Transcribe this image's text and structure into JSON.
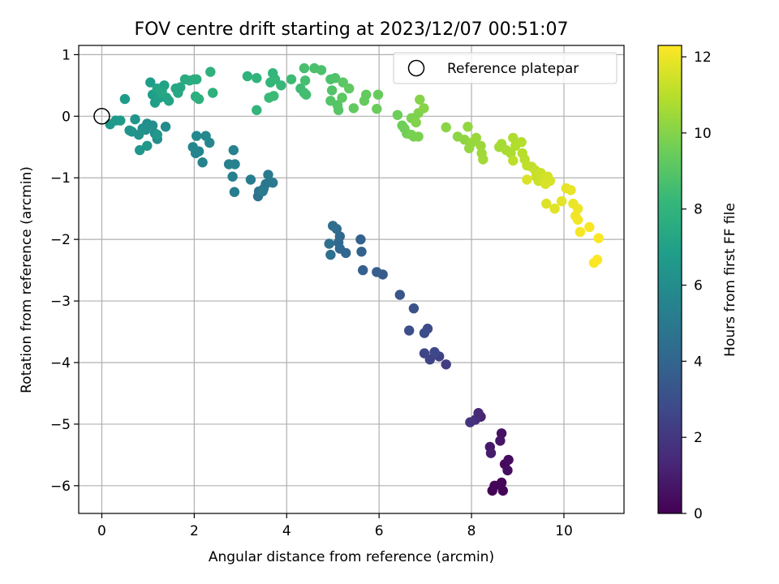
{
  "chart_data": {
    "type": "scatter",
    "title": "FOV centre drift starting at 2023/12/07 00:51:07",
    "xlabel": "Angular distance from reference (arcmin)",
    "ylabel": "Rotation from reference (arcmin)",
    "xlim": [
      -0.5,
      11.3
    ],
    "ylim": [
      -6.45,
      1.15
    ],
    "xticks": [
      0,
      2,
      4,
      6,
      8,
      10
    ],
    "yticks": [
      1,
      0,
      -1,
      -2,
      -3,
      -4,
      -5,
      -6
    ],
    "grid": true,
    "legend": {
      "placement": "top-right",
      "entries": [
        "Reference platepar"
      ]
    },
    "reference_point": {
      "x": 0,
      "y": 0
    },
    "colorbar": {
      "label": "Hours from first FF file",
      "range": [
        0,
        12.3
      ],
      "ticks": [
        0,
        2,
        4,
        6,
        8,
        10,
        12
      ],
      "colormap": "viridis",
      "stops": [
        "#440154",
        "#482878",
        "#3e4989",
        "#31688e",
        "#26828e",
        "#1f9e89",
        "#35b779",
        "#6ece58",
        "#b5de2b",
        "#fde725"
      ]
    },
    "points": [
      [
        8.45,
        -6.08,
        0.05
      ],
      [
        8.5,
        -6.0,
        0.1
      ],
      [
        8.68,
        -6.08,
        0.15
      ],
      [
        8.65,
        -5.95,
        0.2
      ],
      [
        8.72,
        -5.65,
        0.3
      ],
      [
        8.8,
        -5.58,
        0.4
      ],
      [
        8.78,
        -5.75,
        0.5
      ],
      [
        8.65,
        -5.15,
        0.6
      ],
      [
        8.62,
        -5.27,
        0.7
      ],
      [
        8.4,
        -5.37,
        0.8
      ],
      [
        8.42,
        -5.47,
        0.9
      ],
      [
        8.2,
        -4.88,
        1.2
      ],
      [
        8.15,
        -4.82,
        1.4
      ],
      [
        8.08,
        -4.93,
        1.6
      ],
      [
        7.97,
        -4.97,
        1.8
      ],
      [
        7.45,
        -4.03,
        2.2
      ],
      [
        7.3,
        -3.9,
        2.4
      ],
      [
        7.1,
        -3.95,
        2.5
      ],
      [
        6.98,
        -3.85,
        2.6
      ],
      [
        7.2,
        -3.83,
        2.7
      ],
      [
        7.05,
        -3.45,
        2.8
      ],
      [
        6.98,
        -3.52,
        2.9
      ],
      [
        6.65,
        -3.48,
        3.0
      ],
      [
        6.75,
        -3.12,
        3.1
      ],
      [
        6.45,
        -2.9,
        3.3
      ],
      [
        6.08,
        -2.57,
        3.5
      ],
      [
        5.95,
        -2.53,
        3.6
      ],
      [
        5.65,
        -2.5,
        3.7
      ],
      [
        5.6,
        -2.0,
        3.8
      ],
      [
        5.62,
        -2.2,
        3.9
      ],
      [
        5.28,
        -2.22,
        4.0
      ],
      [
        5.15,
        -2.15,
        4.1
      ],
      [
        5.12,
        -2.05,
        4.15
      ],
      [
        5.15,
        -1.95,
        4.2
      ],
      [
        5.08,
        -1.83,
        4.3
      ],
      [
        5.0,
        -1.78,
        4.4
      ],
      [
        4.92,
        -2.07,
        4.5
      ],
      [
        4.95,
        -2.25,
        4.55
      ],
      [
        3.38,
        -1.3,
        4.6
      ],
      [
        3.4,
        -1.22,
        4.7
      ],
      [
        3.5,
        -1.18,
        4.8
      ],
      [
        3.55,
        -1.1,
        4.9
      ],
      [
        3.7,
        -1.08,
        5.0
      ],
      [
        3.6,
        -0.95,
        5.05
      ],
      [
        3.48,
        -1.22,
        5.1
      ],
      [
        3.22,
        -1.03,
        5.15
      ],
      [
        2.87,
        -1.23,
        5.2
      ],
      [
        2.83,
        -0.98,
        5.3
      ],
      [
        2.75,
        -0.78,
        5.35
      ],
      [
        2.88,
        -0.78,
        5.4
      ],
      [
        2.85,
        -0.55,
        5.45
      ],
      [
        2.18,
        -0.75,
        5.5
      ],
      [
        2.03,
        -0.6,
        5.55
      ],
      [
        2.1,
        -0.57,
        5.6
      ],
      [
        1.97,
        -0.5,
        5.65
      ],
      [
        2.33,
        -0.43,
        5.7
      ],
      [
        2.25,
        -0.32,
        5.75
      ],
      [
        2.05,
        -0.32,
        5.8
      ],
      [
        1.38,
        -0.17,
        5.9
      ],
      [
        1.2,
        -0.37,
        5.95
      ],
      [
        1.15,
        -0.28,
        6.0
      ],
      [
        1.1,
        -0.15,
        6.05
      ],
      [
        0.98,
        -0.12,
        6.1
      ],
      [
        0.95,
        -0.22,
        6.15
      ],
      [
        0.88,
        -0.2,
        6.2
      ],
      [
        0.8,
        -0.3,
        6.25
      ],
      [
        0.65,
        -0.25,
        6.3
      ],
      [
        0.6,
        -0.23,
        6.35
      ],
      [
        0.72,
        -0.05,
        6.4
      ],
      [
        0.82,
        -0.55,
        6.45
      ],
      [
        0.98,
        -0.48,
        6.5
      ],
      [
        1.2,
        -0.3,
        6.55
      ],
      [
        0.18,
        -0.13,
        6.6
      ],
      [
        0.3,
        -0.07,
        6.65
      ],
      [
        0.4,
        -0.07,
        6.7
      ],
      [
        0.5,
        0.28,
        6.75
      ],
      [
        1.05,
        0.55,
        6.8
      ],
      [
        1.1,
        0.35,
        6.85
      ],
      [
        1.15,
        0.22,
        6.9
      ],
      [
        1.25,
        0.3,
        6.95
      ],
      [
        1.3,
        0.42,
        7.0
      ],
      [
        1.35,
        0.5,
        7.05
      ],
      [
        1.4,
        0.3,
        7.1
      ],
      [
        1.45,
        0.25,
        7.15
      ],
      [
        1.2,
        0.45,
        7.2
      ],
      [
        1.3,
        0.38,
        7.25
      ],
      [
        1.6,
        0.45,
        7.3
      ],
      [
        1.65,
        0.38,
        7.35
      ],
      [
        1.7,
        0.47,
        7.4
      ],
      [
        1.8,
        0.6,
        7.5
      ],
      [
        1.9,
        0.58,
        7.55
      ],
      [
        2.0,
        0.6,
        7.6
      ],
      [
        2.05,
        0.6,
        7.65
      ],
      [
        2.03,
        0.32,
        7.7
      ],
      [
        2.1,
        0.28,
        7.75
      ],
      [
        2.35,
        0.72,
        7.8
      ],
      [
        2.4,
        0.38,
        7.85
      ],
      [
        3.15,
        0.65,
        7.9
      ],
      [
        3.35,
        0.62,
        8.0
      ],
      [
        3.35,
        0.1,
        8.05
      ],
      [
        3.65,
        0.55,
        8.1
      ],
      [
        3.7,
        0.7,
        8.15
      ],
      [
        3.75,
        0.6,
        8.2
      ],
      [
        3.88,
        0.5,
        8.25
      ],
      [
        3.62,
        0.3,
        8.3
      ],
      [
        3.72,
        0.33,
        8.35
      ],
      [
        4.1,
        0.6,
        8.4
      ],
      [
        4.3,
        0.45,
        8.45
      ],
      [
        4.38,
        0.38,
        8.5
      ],
      [
        4.42,
        0.35,
        8.55
      ],
      [
        4.4,
        0.58,
        8.6
      ],
      [
        4.38,
        0.78,
        8.65
      ],
      [
        4.6,
        0.78,
        8.7
      ],
      [
        4.75,
        0.75,
        8.75
      ],
      [
        4.95,
        0.6,
        8.8
      ],
      [
        5.05,
        0.62,
        8.85
      ],
      [
        4.98,
        0.42,
        8.9
      ],
      [
        4.95,
        0.25,
        8.95
      ],
      [
        5.1,
        0.18,
        9.0
      ],
      [
        5.12,
        0.1,
        9.05
      ],
      [
        5.22,
        0.55,
        9.1
      ],
      [
        5.2,
        0.3,
        9.15
      ],
      [
        5.35,
        0.45,
        9.2
      ],
      [
        5.45,
        0.13,
        9.25
      ],
      [
        5.72,
        0.35,
        9.3
      ],
      [
        5.68,
        0.25,
        9.35
      ],
      [
        5.98,
        0.35,
        9.4
      ],
      [
        5.95,
        0.12,
        9.45
      ],
      [
        6.4,
        0.02,
        9.5
      ],
      [
        6.5,
        -0.15,
        9.55
      ],
      [
        6.55,
        -0.2,
        9.6
      ],
      [
        6.6,
        -0.28,
        9.65
      ],
      [
        6.7,
        -0.3,
        9.7
      ],
      [
        6.75,
        -0.33,
        9.75
      ],
      [
        6.85,
        -0.33,
        9.8
      ],
      [
        6.7,
        -0.03,
        9.85
      ],
      [
        6.85,
        0.05,
        9.9
      ],
      [
        6.8,
        -0.1,
        9.95
      ],
      [
        6.88,
        0.27,
        10.0
      ],
      [
        6.97,
        0.13,
        10.05
      ],
      [
        7.45,
        -0.18,
        10.1
      ],
      [
        7.7,
        -0.33,
        10.15
      ],
      [
        7.85,
        -0.38,
        10.2
      ],
      [
        7.92,
        -0.17,
        10.25
      ],
      [
        7.95,
        -0.52,
        10.3
      ],
      [
        8.0,
        -0.43,
        10.35
      ],
      [
        8.1,
        -0.35,
        10.4
      ],
      [
        8.2,
        -0.48,
        10.45
      ],
      [
        8.22,
        -0.6,
        10.5
      ],
      [
        8.25,
        -0.7,
        10.55
      ],
      [
        8.6,
        -0.5,
        10.6
      ],
      [
        8.65,
        -0.45,
        10.65
      ],
      [
        8.75,
        -0.55,
        10.7
      ],
      [
        8.85,
        -0.6,
        10.75
      ],
      [
        8.9,
        -0.35,
        10.8
      ],
      [
        8.95,
        -0.48,
        10.85
      ],
      [
        9.08,
        -0.42,
        10.9
      ],
      [
        9.1,
        -0.6,
        10.95
      ],
      [
        9.15,
        -0.7,
        11.0
      ],
      [
        8.9,
        -0.72,
        11.05
      ],
      [
        9.2,
        -0.8,
        11.1
      ],
      [
        9.3,
        -0.82,
        11.15
      ],
      [
        9.38,
        -0.88,
        11.2
      ],
      [
        9.4,
        -0.98,
        11.25
      ],
      [
        9.45,
        -1.05,
        11.3
      ],
      [
        9.5,
        -0.92,
        11.35
      ],
      [
        9.55,
        -1.05,
        11.4
      ],
      [
        9.6,
        -1.0,
        11.45
      ],
      [
        9.65,
        -0.98,
        11.5
      ],
      [
        9.7,
        -1.05,
        11.55
      ],
      [
        9.6,
        -1.1,
        11.6
      ],
      [
        9.2,
        -1.03,
        11.65
      ],
      [
        9.62,
        -1.42,
        11.7
      ],
      [
        9.8,
        -1.5,
        11.75
      ],
      [
        9.95,
        -1.38,
        11.8
      ],
      [
        10.05,
        -1.17,
        11.85
      ],
      [
        10.15,
        -1.2,
        11.9
      ],
      [
        10.2,
        -1.42,
        11.95
      ],
      [
        10.3,
        -1.5,
        12.0
      ],
      [
        10.25,
        -1.62,
        12.05
      ],
      [
        10.3,
        -1.68,
        12.1
      ],
      [
        10.35,
        -1.88,
        12.15
      ],
      [
        10.55,
        -1.8,
        12.2
      ],
      [
        10.75,
        -1.98,
        12.25
      ],
      [
        10.65,
        -2.38,
        12.28
      ],
      [
        10.72,
        -2.33,
        12.3
      ]
    ]
  }
}
